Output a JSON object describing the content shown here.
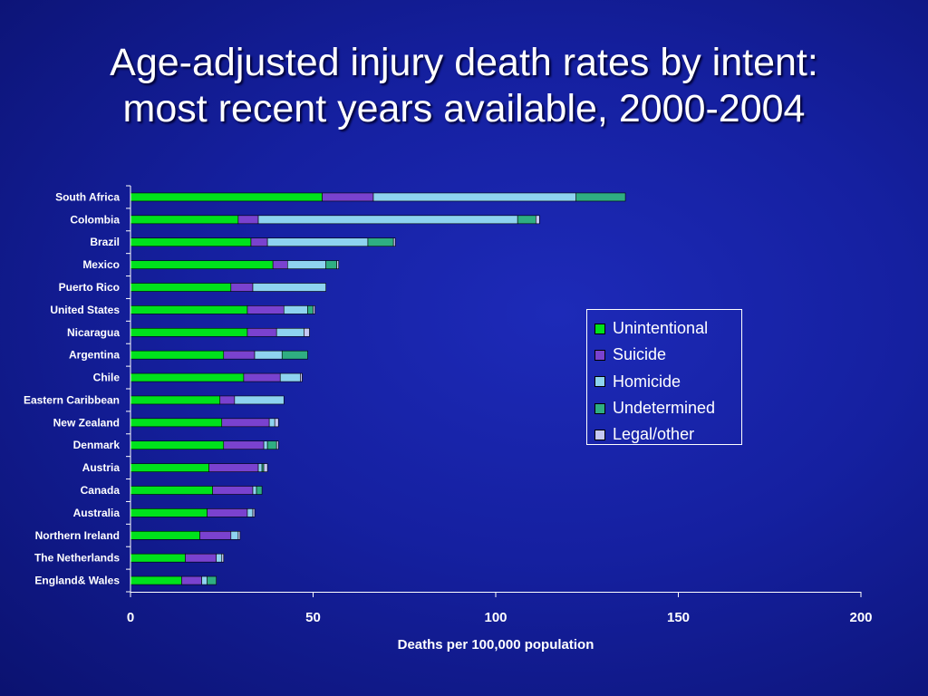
{
  "slide": {
    "title_line1": "Age-adjusted injury death rates by intent:",
    "title_line2": "most recent years available, 2000-2004"
  },
  "colors": {
    "Unintentional": "#00e21c",
    "Suicide": "#7a42cf",
    "Homicide": "#8ed3f0",
    "Undetermined": "#2fae82",
    "Legal/other": "#c6c9f4"
  },
  "chart_data": {
    "type": "bar",
    "orientation": "horizontal",
    "stacked": true,
    "categories": [
      "South Africa",
      "Colombia",
      "Brazil",
      "Mexico",
      "Puerto Rico",
      "United States",
      "Nicaragua",
      "Argentina",
      "Chile",
      "Eastern Caribbean",
      "New Zealand",
      "Denmark",
      "Austria",
      "Canada",
      "Australia",
      "Northern Ireland",
      "The Netherlands",
      "England& Wales"
    ],
    "series": [
      {
        "name": "Unintentional",
        "values": [
          52.5,
          29.5,
          33,
          39,
          27.5,
          32,
          32,
          25.5,
          31,
          24.5,
          25,
          25.5,
          21.5,
          22.5,
          21,
          19,
          15,
          14
        ]
      },
      {
        "name": "Suicide",
        "values": [
          14,
          5.5,
          4.5,
          4,
          6,
          10,
          8,
          8.5,
          10,
          4,
          13,
          11,
          13.5,
          11,
          11,
          8.5,
          8.5,
          5.5
        ]
      },
      {
        "name": "Homicide",
        "values": [
          55.5,
          71,
          27.5,
          10.5,
          20,
          6.5,
          7.5,
          7.5,
          5.5,
          13.5,
          1.5,
          1,
          1,
          1,
          1.5,
          2,
          1.5,
          1.5
        ]
      },
      {
        "name": "Undetermined",
        "values": [
          13.5,
          5,
          7,
          3,
          0,
          1.5,
          0,
          7,
          0,
          0,
          0,
          2.5,
          0.5,
          1.5,
          0,
          0,
          0,
          2.5
        ]
      },
      {
        "name": "Legal/other",
        "values": [
          0,
          1,
          0.5,
          0.5,
          0,
          0.5,
          1.5,
          0,
          0.5,
          0,
          1,
          0.5,
          1,
          0,
          0.5,
          0.5,
          0.5,
          0
        ]
      }
    ],
    "xlabel": "Deaths per 100,000 population",
    "ylabel": "",
    "xlim": [
      0,
      200
    ],
    "xticks": [
      0,
      50,
      100,
      150,
      200
    ],
    "grid": false,
    "legend_position": "right"
  }
}
